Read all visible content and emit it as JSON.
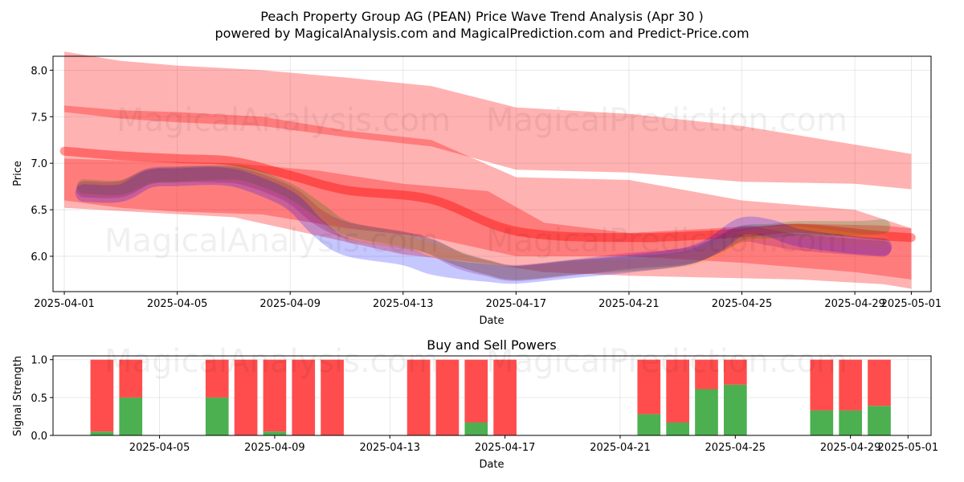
{
  "title_line1": "Peach Property Group AG (PEAN) Price Wave Trend Analysis (Apr 30 )",
  "title_line2": "powered by MagicalAnalysis.com and MagicalPrediction.com and Predict-Price.com",
  "watermarks": {
    "analysis": "MagicalAnalysis.com",
    "prediction": "MagicalPrediction.com"
  },
  "colors": {
    "red": "#ff0000",
    "green": "#008000",
    "blue": "#0000ff",
    "purple": "#800080",
    "orange": "#ff8c00",
    "bar_red": "#ff4d4d",
    "bar_green": "#4caf50"
  },
  "chart_data": [
    {
      "type": "area",
      "title": "",
      "xlabel": "Date",
      "ylabel": "Price",
      "x_tick_labels": [
        "2025-04-01",
        "2025-04-05",
        "2025-04-09",
        "2025-04-13",
        "2025-04-17",
        "2025-04-21",
        "2025-04-25",
        "2025-04-29",
        "2025-05-01"
      ],
      "x_tick_days": [
        0,
        4,
        8,
        12,
        16,
        20,
        24,
        28,
        30
      ],
      "y_ticks": [
        "6.0",
        "6.5",
        "7.0",
        "7.5",
        "8.0"
      ],
      "y_tick_values": [
        6.0,
        6.5,
        7.0,
        7.5,
        8.0
      ],
      "xlim_days": [
        -0.4,
        30.7
      ],
      "ylim": [
        5.62,
        8.15
      ],
      "grid": true,
      "day_zero": "2025-04-01",
      "bands": [
        {
          "name": "upper channel",
          "color": "red",
          "x": [
            0,
            2,
            4,
            7,
            10,
            13,
            16,
            20,
            24,
            28,
            30
          ],
          "low": [
            7.55,
            7.48,
            7.44,
            7.4,
            7.28,
            7.18,
            6.93,
            6.9,
            6.8,
            6.78,
            6.72
          ],
          "high": [
            8.2,
            8.1,
            8.05,
            8.0,
            7.92,
            7.83,
            7.6,
            7.53,
            7.4,
            7.2,
            7.1
          ]
        },
        {
          "name": "middle channel",
          "color": "red",
          "x": [
            0,
            2,
            4,
            7,
            10,
            13,
            16,
            20,
            24,
            28,
            30
          ],
          "low": [
            6.6,
            6.52,
            6.48,
            6.45,
            6.3,
            6.2,
            6.0,
            6.0,
            5.93,
            5.83,
            5.75
          ],
          "high": [
            7.62,
            7.57,
            7.55,
            7.5,
            7.35,
            7.25,
            6.85,
            6.82,
            6.6,
            6.5,
            6.3
          ]
        },
        {
          "name": "wide lower channel",
          "color": "red",
          "x": [
            0,
            3,
            6,
            9,
            12,
            15,
            17,
            20,
            23,
            26,
            29,
            30
          ],
          "low": [
            6.52,
            6.47,
            6.42,
            6.22,
            6.02,
            5.92,
            5.83,
            5.79,
            5.77,
            5.75,
            5.7,
            5.65
          ],
          "high": [
            7.05,
            7.02,
            7.0,
            6.92,
            6.78,
            6.7,
            6.36,
            6.25,
            6.3,
            6.35,
            6.33,
            6.3
          ]
        }
      ],
      "lines": [
        {
          "name": "red trend",
          "color": "red",
          "width": 11,
          "x": [
            0,
            2,
            4,
            6,
            8,
            10,
            13,
            16,
            20,
            24,
            26,
            29,
            30
          ],
          "y": [
            7.13,
            7.08,
            7.05,
            7.02,
            6.87,
            6.71,
            6.61,
            6.27,
            6.2,
            6.25,
            6.3,
            6.22,
            6.2
          ]
        },
        {
          "name": "green wave",
          "color": "green",
          "width": 18,
          "x": [
            0.7,
            2,
            3,
            4,
            5.5,
            6.5,
            8,
            9,
            10,
            12,
            13,
            14,
            15,
            16,
            18,
            20,
            22,
            23,
            24,
            25,
            26,
            28,
            29
          ],
          "y": [
            6.75,
            6.74,
            6.86,
            6.88,
            6.9,
            6.88,
            6.7,
            6.5,
            6.3,
            6.18,
            6.1,
            5.97,
            5.88,
            5.82,
            5.88,
            5.92,
            5.98,
            6.1,
            6.25,
            6.27,
            6.3,
            6.3,
            6.32
          ]
        },
        {
          "name": "orange wave",
          "color": "orange",
          "width": 16,
          "x": [
            0.7,
            2,
            3,
            4,
            5.5,
            6.5,
            8,
            9,
            10,
            12,
            13,
            14,
            15,
            16,
            18,
            20,
            22,
            23,
            24,
            25,
            26,
            28,
            29
          ],
          "y": [
            6.72,
            6.72,
            6.84,
            6.86,
            6.88,
            6.85,
            6.68,
            6.45,
            6.25,
            6.15,
            6.07,
            5.96,
            5.87,
            5.82,
            5.87,
            5.9,
            5.96,
            6.05,
            6.2,
            6.25,
            6.25,
            6.18,
            6.15
          ]
        },
        {
          "name": "blue wave",
          "color": "blue",
          "width": 22,
          "x": [
            0.7,
            2,
            3,
            4,
            5.5,
            6.5,
            8,
            9,
            10,
            12,
            13,
            14,
            15,
            16,
            18,
            20,
            22,
            23,
            24,
            25,
            26,
            28,
            29
          ],
          "y": [
            6.68,
            6.68,
            6.83,
            6.85,
            6.86,
            6.8,
            6.6,
            6.3,
            6.1,
            6.0,
            5.9,
            5.85,
            5.82,
            5.8,
            5.86,
            5.92,
            6.0,
            6.12,
            6.32,
            6.3,
            6.2,
            6.12,
            6.1
          ]
        },
        {
          "name": "purple wave",
          "color": "purple",
          "width": 20,
          "x": [
            0.7,
            2,
            3,
            4,
            5.5,
            6.5,
            8,
            9,
            10,
            12,
            13,
            14,
            15,
            16,
            18,
            20,
            22,
            23,
            24,
            25,
            26,
            28,
            29
          ],
          "y": [
            6.72,
            6.72,
            6.86,
            6.88,
            6.88,
            6.84,
            6.66,
            6.42,
            6.28,
            6.18,
            6.1,
            5.95,
            5.87,
            5.82,
            5.88,
            5.95,
            6.0,
            6.1,
            6.24,
            6.2,
            6.15,
            6.1,
            6.08
          ]
        }
      ]
    },
    {
      "type": "bar",
      "title": "Buy and Sell Powers",
      "xlabel": "Date",
      "ylabel": "Signal Strength",
      "x_tick_labels": [
        "2025-04-05",
        "2025-04-09",
        "2025-04-13",
        "2025-04-17",
        "2025-04-21",
        "2025-04-25",
        "2025-04-29",
        "2025-05-01"
      ],
      "x_tick_days": [
        4,
        8,
        12,
        16,
        20,
        24,
        28,
        30
      ],
      "y_ticks": [
        "0.0",
        "0.5",
        "1.0"
      ],
      "y_tick_values": [
        0,
        0.5,
        1.0
      ],
      "xlim_days": [
        0.3,
        30.8
      ],
      "ylim": [
        0,
        1.05
      ],
      "grid": true,
      "series": [
        {
          "name": "Buy",
          "color": "bar_green"
        },
        {
          "name": "Sell",
          "color": "bar_red"
        }
      ],
      "bars": [
        {
          "day": 2,
          "buy": 0.05,
          "sell": 0.95
        },
        {
          "day": 3,
          "buy": 0.5,
          "sell": 0.5
        },
        {
          "day": 6,
          "buy": 0.5,
          "sell": 0.5
        },
        {
          "day": 7,
          "buy": 0.0,
          "sell": 1.0
        },
        {
          "day": 8,
          "buy": 0.05,
          "sell": 0.95
        },
        {
          "day": 9,
          "buy": 0.0,
          "sell": 1.0
        },
        {
          "day": 10,
          "buy": 0.0,
          "sell": 1.0
        },
        {
          "day": 13,
          "buy": 0.0,
          "sell": 1.0
        },
        {
          "day": 14,
          "buy": 0.0,
          "sell": 1.0
        },
        {
          "day": 15,
          "buy": 0.17,
          "sell": 0.83
        },
        {
          "day": 16,
          "buy": 0.0,
          "sell": 1.0
        },
        {
          "day": 21,
          "buy": 0.28,
          "sell": 0.72
        },
        {
          "day": 22,
          "buy": 0.17,
          "sell": 0.83
        },
        {
          "day": 23,
          "buy": 0.61,
          "sell": 0.39
        },
        {
          "day": 24,
          "buy": 0.67,
          "sell": 0.33
        },
        {
          "day": 27,
          "buy": 0.33,
          "sell": 0.67
        },
        {
          "day": 28,
          "buy": 0.33,
          "sell": 0.67
        },
        {
          "day": 29,
          "buy": 0.39,
          "sell": 0.61
        }
      ]
    }
  ]
}
